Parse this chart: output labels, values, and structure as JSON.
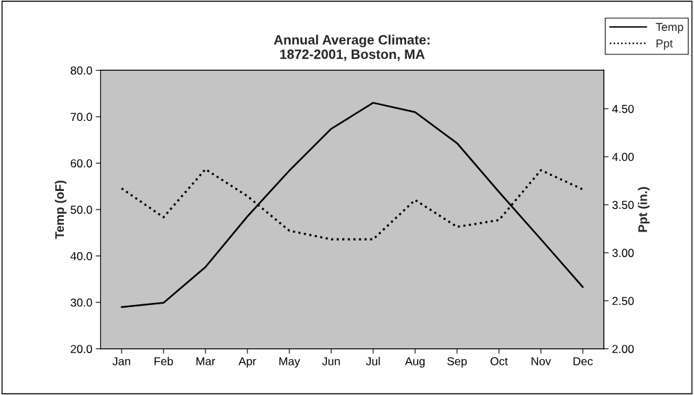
{
  "chart_data": {
    "type": "line",
    "title": "Annual Average Climate:\n1872-2001, Boston, MA",
    "ylabel": "Temp (oF)",
    "y2label": "Ppt (in.)",
    "categories": [
      "Jan",
      "Feb",
      "Mar",
      "Apr",
      "May",
      "Jun",
      "Jul",
      "Aug",
      "Sep",
      "Oct",
      "Nov",
      "Dec"
    ],
    "series": [
      {
        "name": "Temp",
        "color": "#000000",
        "line_style": "solid",
        "values": [
          29.0,
          29.9,
          37.6,
          48.5,
          58.4,
          67.4,
          73.0,
          71.0,
          64.3,
          53.8,
          43.6,
          33.3
        ]
      },
      {
        "name": "Ppt",
        "color": "#000000",
        "line_style": "dotted",
        "axis": "y2",
        "values": [
          3.67,
          3.37,
          3.87,
          3.59,
          3.23,
          3.14,
          3.14,
          3.55,
          3.27,
          3.34,
          3.86,
          3.66
        ]
      }
    ],
    "ylim": [
      20,
      80
    ],
    "yticks": [
      {
        "value": 20,
        "label": "20.0"
      },
      {
        "value": 30,
        "label": "30.0"
      },
      {
        "value": 40,
        "label": "40.0"
      },
      {
        "value": 50,
        "label": "50.0"
      },
      {
        "value": 60,
        "label": "60.0"
      },
      {
        "value": 70,
        "label": "70.0"
      },
      {
        "value": 80,
        "label": "80.0"
      }
    ],
    "y2lim": [
      2.0,
      4.9
    ],
    "y2ticks": [
      {
        "value": 2.0,
        "label": "2.00"
      },
      {
        "value": 2.5,
        "label": "2.50"
      },
      {
        "value": 3.0,
        "label": "3.00"
      },
      {
        "value": 3.5,
        "label": "3.50"
      },
      {
        "value": 4.0,
        "label": "4.00"
      },
      {
        "value": 4.5,
        "label": "4.50"
      }
    ],
    "grid": false,
    "legend": "top right",
    "marker": "none"
  }
}
